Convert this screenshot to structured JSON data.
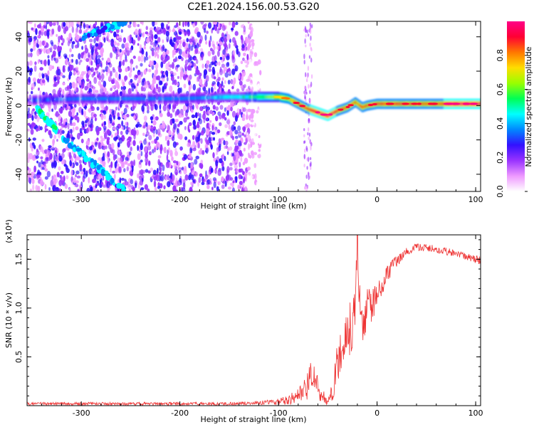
{
  "title": "C2E1.2024.156.00.53.G20",
  "chart_data": [
    {
      "type": "heatmap",
      "xlabel": "Height of straight line (km)",
      "ylabel": "Frequency (Hz)",
      "xlim": [
        -355,
        105
      ],
      "ylim": [
        -50,
        49
      ],
      "xticks": [
        -300,
        -200,
        -100,
        0,
        100
      ],
      "yticks": [
        -40,
        -20,
        0,
        20,
        40
      ],
      "colorbar": {
        "label": "Normalized spectral amplitude",
        "range": [
          0,
          1
        ],
        "ticks": [
          "0.0",
          "0.2",
          "0.4",
          "0.6",
          "0.8"
        ],
        "tick_values": [
          0.0,
          0.2,
          0.4,
          0.6,
          0.8
        ],
        "colors": [
          "#ffffff",
          "#ee99ff",
          "#9933ff",
          "#3311ff",
          "#0088ff",
          "#00ffff",
          "#00ff55",
          "#99ff00",
          "#ffdd00",
          "#ff7700",
          "#ff0033",
          "#ff0088"
        ]
      },
      "ridge": {
        "x": [
          -355,
          -300,
          -250,
          -200,
          -150,
          -120,
          -100,
          -90,
          -80,
          -70,
          -60,
          -50,
          -40,
          -30,
          -22,
          -15,
          -10,
          0,
          20,
          50,
          80,
          105
        ],
        "y": [
          3,
          4,
          4,
          4,
          5,
          5,
          5,
          4,
          1,
          -2,
          -4,
          -6,
          -3,
          -1,
          2,
          -1,
          0,
          1,
          1,
          1,
          1,
          1
        ],
        "amplitude": [
          0.3,
          0.35,
          0.35,
          0.35,
          0.45,
          0.55,
          0.7,
          0.75,
          0.85,
          0.9,
          0.95,
          0.95,
          0.9,
          0.85,
          0.8,
          0.85,
          0.9,
          0.9,
          0.9,
          0.85,
          0.95,
          0.95
        ]
      },
      "features": [
        {
          "x": [
            -345,
            -325
          ],
          "y": [
            -2,
            -14
          ],
          "amplitude": 0.45
        },
        {
          "x": [
            -320,
            -255
          ],
          "y": [
            -18,
            -50
          ],
          "amplitude": 0.4
        },
        {
          "x": [
            -298,
            -255
          ],
          "y": [
            40,
            49
          ],
          "amplitude": 0.35
        }
      ],
      "noise_region": {
        "x": [
          -355,
          -118
        ],
        "y": [
          -50,
          49
        ],
        "amplitude": 0.25
      },
      "noise_stripe": {
        "x": [
          -74,
          -66
        ],
        "y": [
          -50,
          49
        ],
        "amplitude": 0.1
      }
    },
    {
      "type": "line",
      "xlabel": "Height of straight line (km)",
      "ylabel": "SNR (10 * v/v)",
      "yscale_label": "(x10⁴)",
      "xlim": [
        -355,
        105
      ],
      "ylim": [
        0,
        1.75
      ],
      "xticks": [
        -300,
        -200,
        -100,
        0,
        100
      ],
      "yticks": [
        0.5,
        1.0,
        1.5
      ],
      "ytick_labels": [
        "0.5",
        "1.0",
        "1.5"
      ],
      "color": "#ee3333",
      "series": [
        {
          "x": [
            -355,
            -300,
            -250,
            -200,
            -150,
            -120,
            -100,
            -90,
            -80,
            -75,
            -70,
            -66,
            -62,
            -58,
            -55,
            -50,
            -45,
            -40,
            -35,
            -30,
            -25,
            -22,
            -20,
            -17,
            -15,
            -10,
            -5,
            0,
            5,
            10,
            20,
            30,
            40,
            50,
            60,
            70,
            80,
            90,
            100,
            105
          ],
          "y": [
            0.02,
            0.02,
            0.02,
            0.02,
            0.02,
            0.03,
            0.04,
            0.06,
            0.1,
            0.13,
            0.22,
            0.33,
            0.25,
            0.08,
            0.1,
            0.05,
            0.12,
            0.45,
            0.6,
            0.72,
            0.85,
            1.1,
            1.7,
            0.9,
            0.85,
            1.0,
            1.05,
            1.1,
            1.25,
            1.35,
            1.48,
            1.58,
            1.62,
            1.62,
            1.6,
            1.58,
            1.55,
            1.53,
            1.5,
            1.49
          ],
          "jitter": [
            0.015,
            0.015,
            0.015,
            0.015,
            0.015,
            0.02,
            0.03,
            0.05,
            0.08,
            0.1,
            0.15,
            0.18,
            0.15,
            0.06,
            0.06,
            0.05,
            0.12,
            0.22,
            0.25,
            0.28,
            0.3,
            0.3,
            0.25,
            0.25,
            0.22,
            0.22,
            0.18,
            0.15,
            0.12,
            0.1,
            0.06,
            0.04,
            0.04,
            0.04,
            0.04,
            0.04,
            0.04,
            0.04,
            0.04,
            0.04
          ]
        }
      ]
    }
  ]
}
